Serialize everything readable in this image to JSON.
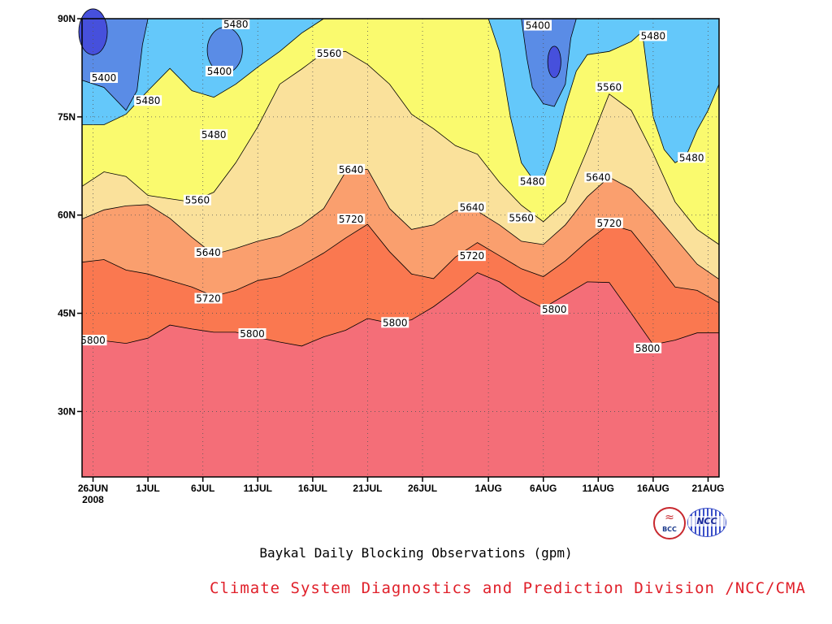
{
  "chart_data": {
    "type": "contour",
    "title": "Baykal Daily Blocking Observations (gpm)",
    "credit": "Climate System Diagnostics and Prediction Division /NCC/CMA",
    "x_ticks": [
      {
        "day": 0,
        "label": "26JUN",
        "sublabel": "2008"
      },
      {
        "day": 5,
        "label": "1JUL"
      },
      {
        "day": 10,
        "label": "6JUL"
      },
      {
        "day": 15,
        "label": "11JUL"
      },
      {
        "day": 20,
        "label": "16JUL"
      },
      {
        "day": 25,
        "label": "21JUL"
      },
      {
        "day": 30,
        "label": "26JUL"
      },
      {
        "day": 36,
        "label": "1AUG"
      },
      {
        "day": 41,
        "label": "6AUG"
      },
      {
        "day": 46,
        "label": "11AUG"
      },
      {
        "day": 51,
        "label": "16AUG"
      },
      {
        "day": 56,
        "label": "21AUG"
      }
    ],
    "x_range_days": [
      -1,
      57
    ],
    "y_ticks": [
      "30N",
      "45N",
      "60N",
      "75N",
      "90N"
    ],
    "y_tick_values": [
      30,
      45,
      60,
      75,
      90
    ],
    "y_range": [
      20,
      90
    ],
    "contour_levels": [
      5400,
      5480,
      5560,
      5640,
      5720,
      5800
    ],
    "fill_colors": {
      "below_5400": "#4650dc",
      "5400_5480": "#5a8ce6",
      "5480_5560": "#64c8fa",
      "5560_5640": "#fafa6e",
      "5640_5720": "#fae19b",
      "5720_5800": "#fa9f6e",
      "5800_5880": "#fa7850",
      "above_5880": "#f46e78"
    },
    "contours": [
      {
        "level": 5800,
        "lat": [
          [
            -1,
            40.4
          ],
          [
            1,
            40.8
          ],
          [
            3,
            40.4
          ],
          [
            5,
            41.2
          ],
          [
            7,
            43.2
          ],
          [
            9,
            42.6
          ],
          [
            11,
            42.1
          ],
          [
            13,
            42.1
          ],
          [
            15,
            41.3
          ],
          [
            17,
            40.6
          ],
          [
            19,
            40.0
          ],
          [
            21,
            41.4
          ],
          [
            23,
            42.4
          ],
          [
            25,
            44.2
          ],
          [
            27,
            43.5
          ],
          [
            29,
            44.0
          ],
          [
            31,
            46.0
          ],
          [
            33,
            48.5
          ],
          [
            35,
            51.2
          ],
          [
            37,
            49.8
          ],
          [
            39,
            47.5
          ],
          [
            41,
            45.8
          ],
          [
            43,
            47.8
          ],
          [
            45,
            49.8
          ],
          [
            47,
            49.7
          ],
          [
            49,
            45.0
          ],
          [
            51,
            40.2
          ],
          [
            53,
            40.9
          ],
          [
            55,
            42.0
          ],
          [
            57,
            42.0
          ]
        ]
      },
      {
        "level": 5720,
        "lat": [
          [
            -1,
            52.8
          ],
          [
            1,
            53.2
          ],
          [
            3,
            51.6
          ],
          [
            5,
            51.0
          ],
          [
            7,
            50.0
          ],
          [
            9,
            49.0
          ],
          [
            11,
            47.6
          ],
          [
            13,
            48.5
          ],
          [
            15,
            50.0
          ],
          [
            17,
            50.6
          ],
          [
            19,
            52.3
          ],
          [
            21,
            54.2
          ],
          [
            23,
            56.5
          ],
          [
            25,
            58.6
          ],
          [
            27,
            54.4
          ],
          [
            29,
            51.0
          ],
          [
            31,
            50.3
          ],
          [
            33,
            53.6
          ],
          [
            35,
            55.8
          ],
          [
            37,
            53.8
          ],
          [
            39,
            51.8
          ],
          [
            41,
            50.6
          ],
          [
            43,
            53.0
          ],
          [
            45,
            56.0
          ],
          [
            47,
            58.6
          ],
          [
            49,
            57.6
          ],
          [
            51,
            53.4
          ],
          [
            53,
            49.0
          ],
          [
            55,
            48.5
          ],
          [
            57,
            46.6
          ]
        ]
      },
      {
        "level": 5640,
        "lat": [
          [
            -1,
            59.4
          ],
          [
            1,
            60.8
          ],
          [
            3,
            61.4
          ],
          [
            5,
            61.6
          ],
          [
            7,
            59.5
          ],
          [
            9,
            56.6
          ],
          [
            11,
            54.0
          ],
          [
            13,
            54.9
          ],
          [
            15,
            56.0
          ],
          [
            17,
            56.8
          ],
          [
            19,
            58.5
          ],
          [
            21,
            61.0
          ],
          [
            23,
            66.6
          ],
          [
            25,
            67.0
          ],
          [
            27,
            61.0
          ],
          [
            29,
            57.8
          ],
          [
            31,
            58.5
          ],
          [
            33,
            60.7
          ],
          [
            35,
            60.6
          ],
          [
            37,
            58.5
          ],
          [
            39,
            56.0
          ],
          [
            41,
            55.5
          ],
          [
            43,
            58.5
          ],
          [
            45,
            62.8
          ],
          [
            47,
            65.8
          ],
          [
            49,
            64.0
          ],
          [
            51,
            60.5
          ],
          [
            53,
            56.5
          ],
          [
            55,
            52.5
          ],
          [
            57,
            50.2
          ]
        ]
      },
      {
        "level": 5560,
        "lat": [
          [
            -1,
            64.4
          ],
          [
            1,
            66.6
          ],
          [
            3,
            65.9
          ],
          [
            5,
            63.0
          ],
          [
            7,
            62.5
          ],
          [
            9,
            62.0
          ],
          [
            11,
            63.5
          ],
          [
            13,
            68.0
          ],
          [
            15,
            73.5
          ],
          [
            17,
            80.0
          ],
          [
            19,
            82.3
          ],
          [
            21,
            84.8
          ],
          [
            23,
            85.0
          ],
          [
            25,
            83.0
          ],
          [
            27,
            80.0
          ],
          [
            29,
            75.4
          ],
          [
            31,
            73.2
          ],
          [
            33,
            70.6
          ],
          [
            35,
            69.3
          ],
          [
            37,
            65.0
          ],
          [
            39,
            61.5
          ],
          [
            41,
            59.0
          ],
          [
            43,
            62.0
          ],
          [
            45,
            70.0
          ],
          [
            47,
            78.5
          ],
          [
            49,
            76.0
          ],
          [
            51,
            69.4
          ],
          [
            53,
            62.0
          ],
          [
            55,
            57.8
          ],
          [
            57,
            55.5
          ]
        ]
      },
      {
        "level": 5480,
        "region": "north_west",
        "lat": [
          [
            -1,
            73.8
          ],
          [
            1,
            73.8
          ],
          [
            3,
            75.4
          ],
          [
            5,
            79.0
          ],
          [
            7,
            82.4
          ],
          [
            9,
            79.0
          ],
          [
            11,
            78.0
          ],
          [
            13,
            80.0
          ],
          [
            15,
            82.6
          ],
          [
            17,
            85.0
          ],
          [
            19,
            87.8
          ],
          [
            21,
            90.0
          ]
        ]
      },
      {
        "level": 5480,
        "region": "north_east",
        "lat": [
          [
            36,
            90.0
          ],
          [
            37,
            85.0
          ],
          [
            38,
            75.0
          ],
          [
            39,
            68.0
          ],
          [
            40,
            65.6
          ],
          [
            41,
            65.5
          ],
          [
            42,
            70.0
          ],
          [
            43,
            76.6
          ],
          [
            44,
            82.0
          ],
          [
            45,
            84.5
          ],
          [
            47,
            85.0
          ],
          [
            49,
            86.5
          ],
          [
            50,
            88.0
          ],
          [
            51,
            75.0
          ],
          [
            52,
            70.0
          ],
          [
            53,
            68.0
          ],
          [
            54,
            69.0
          ],
          [
            55,
            73.0
          ],
          [
            56,
            76.0
          ],
          [
            57,
            80.0
          ]
        ]
      },
      {
        "level": 5400,
        "region": "north_west",
        "lat": [
          [
            -1,
            80.6
          ],
          [
            1,
            79.5
          ],
          [
            3,
            76.0
          ],
          [
            4,
            79.0
          ],
          [
            4.5,
            86.0
          ],
          [
            5,
            90.0
          ]
        ]
      },
      {
        "level": 5400,
        "region": "north_east",
        "lat": [
          [
            39,
            90.0
          ],
          [
            39.5,
            84.0
          ],
          [
            40,
            79.5
          ],
          [
            41,
            77.0
          ],
          [
            42,
            76.6
          ],
          [
            43,
            80.0
          ],
          [
            43.5,
            87.0
          ],
          [
            44,
            90.0
          ]
        ]
      }
    ],
    "contour_labels": [
      {
        "level": 5480,
        "day": 13,
        "lat": 89.2,
        "text": "5480"
      },
      {
        "level": 5400,
        "day": 1,
        "lat": 81.0,
        "text": "5400"
      },
      {
        "level": 5480,
        "day": 5,
        "lat": 77.5,
        "text": "5480"
      },
      {
        "level": 5400,
        "day": 11.5,
        "lat": 82.0,
        "text": "5400"
      },
      {
        "level": 5480,
        "day": 11.0,
        "lat": 72.3,
        "text": "5480"
      },
      {
        "level": 5560,
        "day": 9.5,
        "lat": 62.3,
        "text": "5560"
      },
      {
        "level": 5560,
        "day": 21.5,
        "lat": 84.7,
        "text": "5560"
      },
      {
        "level": 5640,
        "day": 10.5,
        "lat": 54.3,
        "text": "5640"
      },
      {
        "level": 5720,
        "day": 10.5,
        "lat": 47.3,
        "text": "5720"
      },
      {
        "level": 5800,
        "day": 0,
        "lat": 40.9,
        "text": "5800"
      },
      {
        "level": 5800,
        "day": 14.5,
        "lat": 41.9,
        "text": "5800"
      },
      {
        "level": 5640,
        "day": 23.5,
        "lat": 67.0,
        "text": "5640"
      },
      {
        "level": 5720,
        "day": 23.5,
        "lat": 59.4,
        "text": "5720"
      },
      {
        "level": 5800,
        "day": 27.5,
        "lat": 43.6,
        "text": "5800"
      },
      {
        "level": 5640,
        "day": 34.5,
        "lat": 61.2,
        "text": "5640"
      },
      {
        "level": 5720,
        "day": 34.5,
        "lat": 53.8,
        "text": "5720"
      },
      {
        "level": 5560,
        "day": 39,
        "lat": 59.6,
        "text": "5560"
      },
      {
        "level": 5480,
        "day": 40,
        "lat": 65.2,
        "text": "5480"
      },
      {
        "level": 5400,
        "day": 40.5,
        "lat": 89.0,
        "text": "5400"
      },
      {
        "level": 5800,
        "day": 42,
        "lat": 45.6,
        "text": "5800"
      },
      {
        "level": 5560,
        "day": 47,
        "lat": 79.6,
        "text": "5560"
      },
      {
        "level": 5640,
        "day": 46,
        "lat": 65.8,
        "text": "5640"
      },
      {
        "level": 5720,
        "day": 47,
        "lat": 58.8,
        "text": "5720"
      },
      {
        "level": 5480,
        "day": 51,
        "lat": 87.4,
        "text": "5480"
      },
      {
        "level": 5800,
        "day": 50.5,
        "lat": 39.7,
        "text": "5800"
      },
      {
        "level": 5480,
        "day": 54.5,
        "lat": 68.8,
        "text": "5480"
      }
    ],
    "closed_lows": [
      {
        "level": 5400,
        "center_day": 12,
        "center_lat": 85.2,
        "width_days": 1.6,
        "height_lat": 3.5
      },
      {
        "level": 5320,
        "center_day": 42,
        "center_lat": 83.4,
        "width_days": 0.6,
        "height_lat": 2.4
      },
      {
        "level": 5320,
        "center_day": 0,
        "center_lat": 88.0,
        "width_days": 1.3,
        "height_lat": 3.5
      }
    ],
    "grid": true,
    "grid_style": "dotted"
  }
}
